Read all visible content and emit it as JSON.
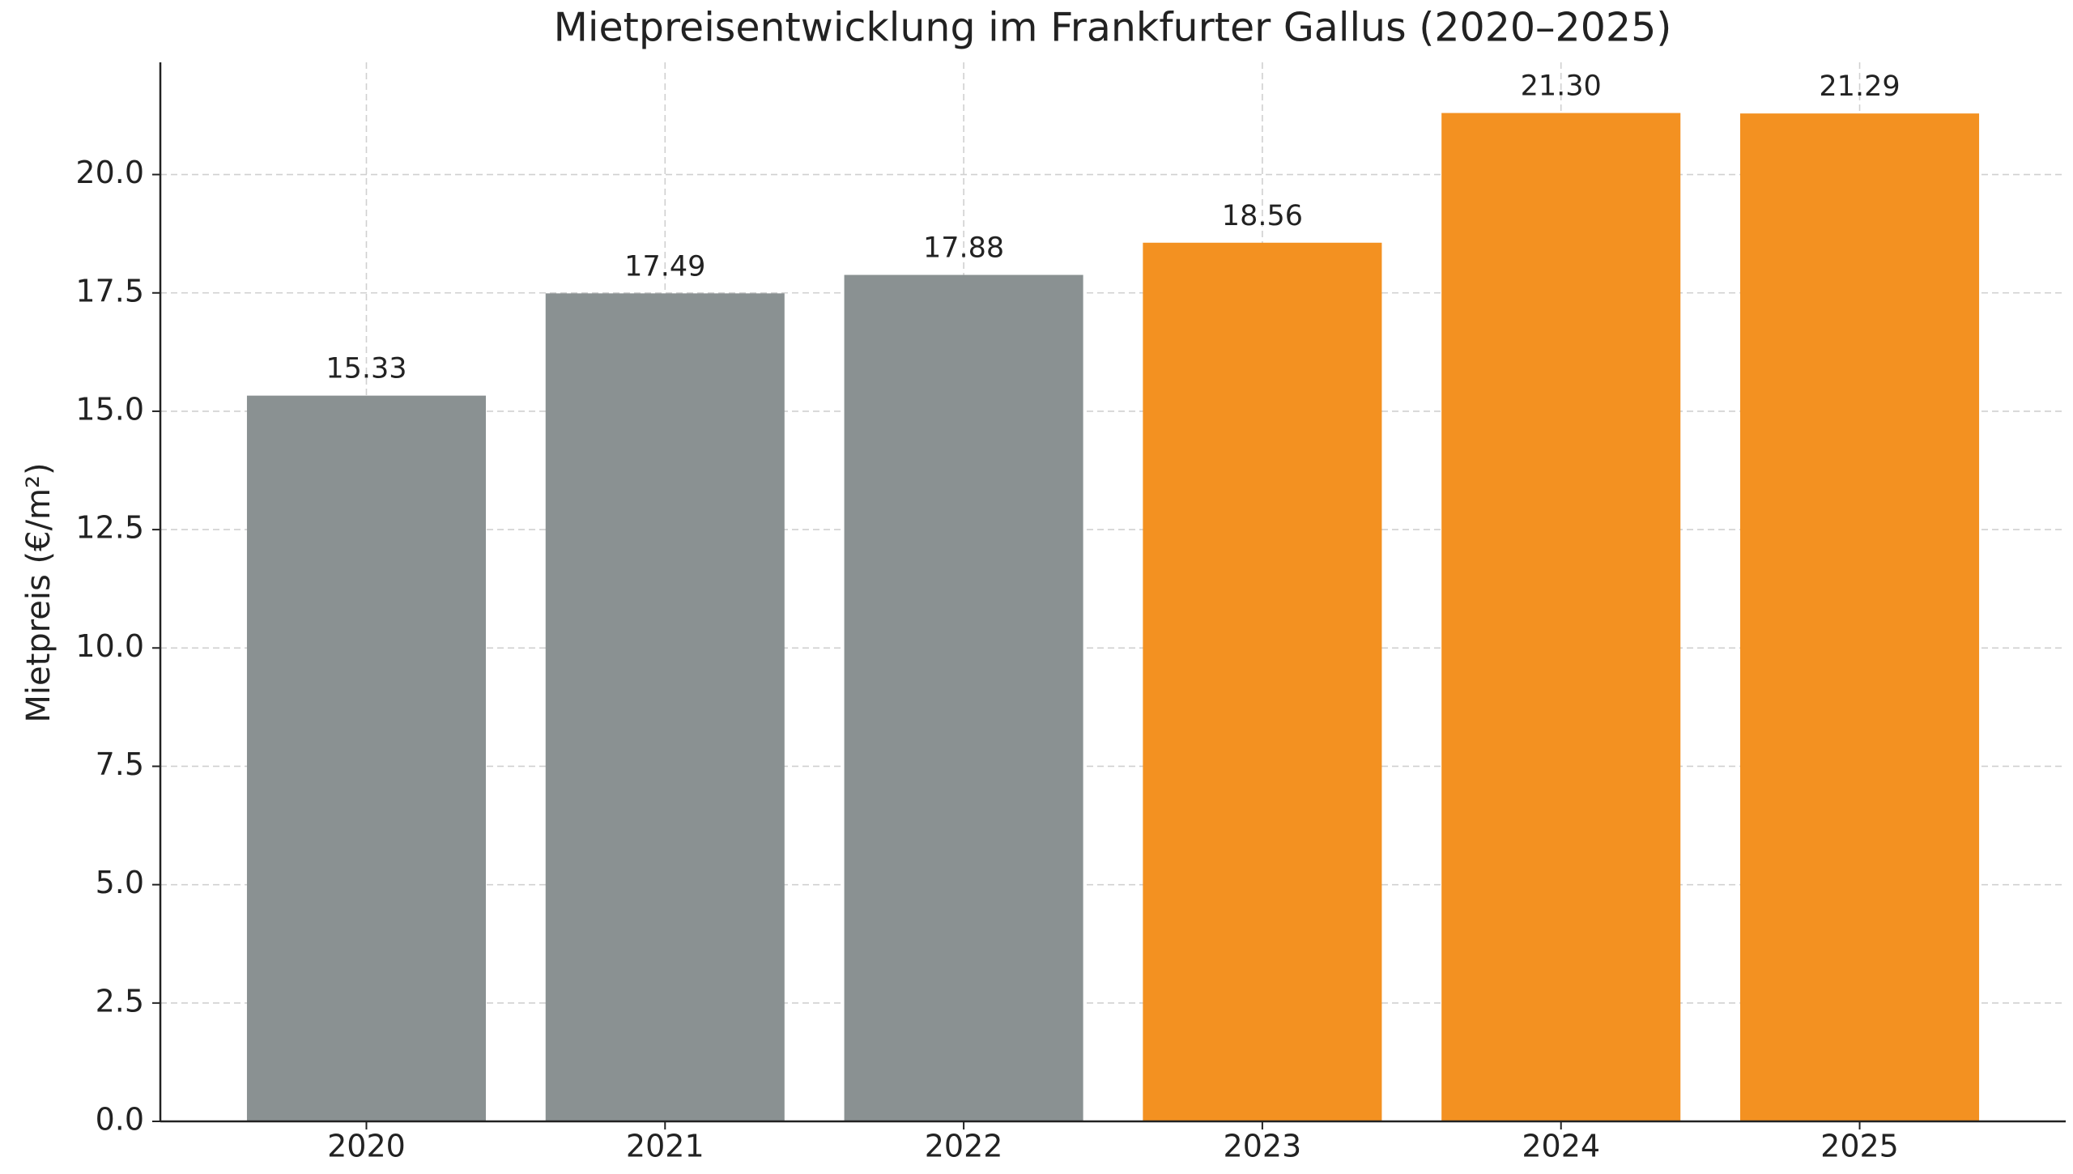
{
  "chart_data": {
    "type": "bar",
    "title": "Mietpreisentwicklung im Frankfurter Gallus (2020–2025)",
    "y_label": "Mietpreis (€/m²)",
    "categories": [
      "2020",
      "2021",
      "2022",
      "2023",
      "2024",
      "2025"
    ],
    "values": [
      15.33,
      17.49,
      17.88,
      18.56,
      21.3,
      21.29
    ],
    "value_labels": [
      "15.33",
      "17.49",
      "17.88",
      "18.56",
      "21.30",
      "21.29"
    ],
    "colors": [
      "#8a9192",
      "#8a9192",
      "#8a9192",
      "#f39121",
      "#f39121",
      "#f39121"
    ],
    "ylim": [
      0,
      22.37
    ],
    "yticks": [
      {
        "value": 0,
        "label": "0.0"
      },
      2.5,
      {
        "value": 5,
        "label": "5.0"
      },
      7.5,
      {
        "value": 10,
        "label": "10.0"
      },
      12.5,
      {
        "value": 15,
        "label": "15.0"
      },
      17.5,
      {
        "value": 20,
        "label": "20.0"
      }
    ],
    "grid": true
  }
}
